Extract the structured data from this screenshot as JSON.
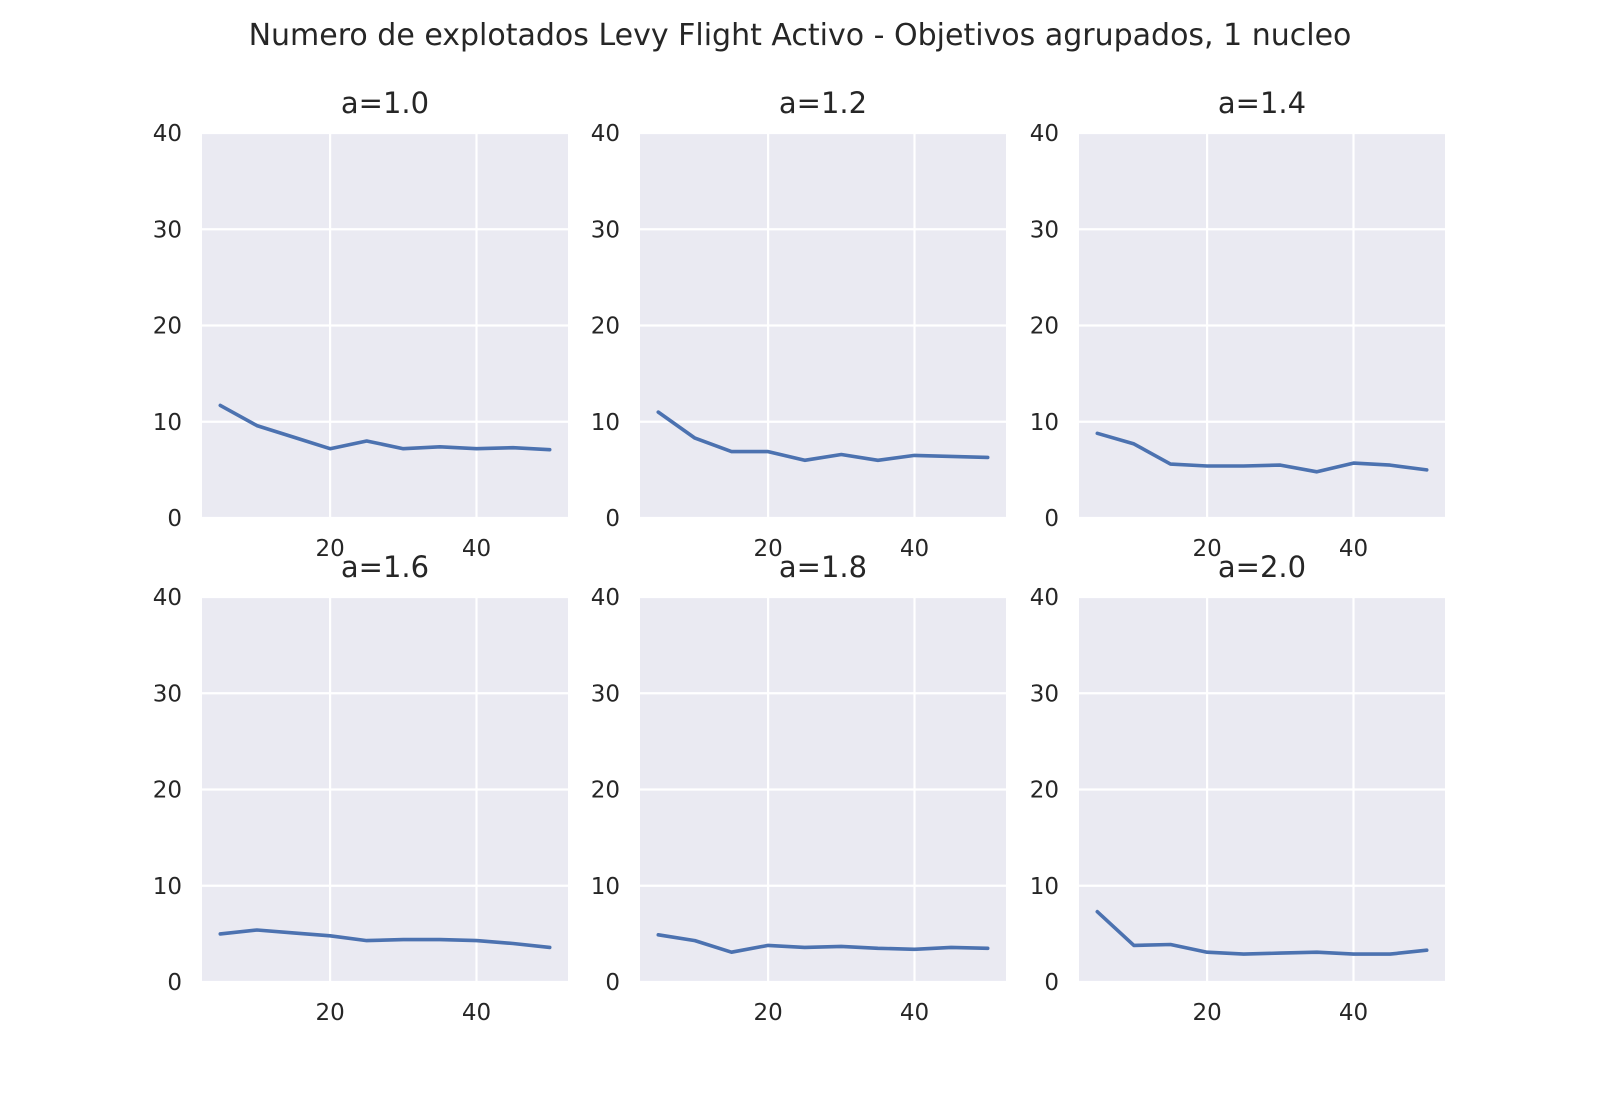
{
  "chart_data": {
    "type": "line",
    "title": "Numero de explotados Levy Flight Activo - Objetivos agrupados, 1 nucleo",
    "grid": true,
    "line_color": "#4c72b0",
    "background_color": "#eaeaf2",
    "xlim": [
      2.5,
      52.5
    ],
    "ylim": [
      0,
      40
    ],
    "xticks": [
      20,
      40
    ],
    "yticks": [
      0,
      10,
      20,
      30,
      40
    ],
    "x": [
      5,
      10,
      15,
      20,
      25,
      30,
      35,
      40,
      45,
      50
    ],
    "panels": [
      {
        "title": "a=1.0",
        "values": [
          11.7,
          9.6,
          8.4,
          7.2,
          8.0,
          7.2,
          7.4,
          7.2,
          7.3,
          7.1
        ]
      },
      {
        "title": "a=1.2",
        "values": [
          11.0,
          8.3,
          6.9,
          6.9,
          6.0,
          6.6,
          6.0,
          6.5,
          6.4,
          6.3
        ]
      },
      {
        "title": "a=1.4",
        "values": [
          8.8,
          7.7,
          5.6,
          5.4,
          5.4,
          5.5,
          4.8,
          5.7,
          5.5,
          5.0
        ]
      },
      {
        "title": "a=1.6",
        "values": [
          5.0,
          5.4,
          5.1,
          4.8,
          4.3,
          4.4,
          4.4,
          4.3,
          4.0,
          3.6
        ]
      },
      {
        "title": "a=1.8",
        "values": [
          4.9,
          4.3,
          3.1,
          3.8,
          3.6,
          3.7,
          3.5,
          3.4,
          3.6,
          3.5
        ]
      },
      {
        "title": "a=2.0",
        "values": [
          7.3,
          3.8,
          3.9,
          3.1,
          2.9,
          3.0,
          3.1,
          2.9,
          2.9,
          3.3
        ]
      }
    ]
  }
}
